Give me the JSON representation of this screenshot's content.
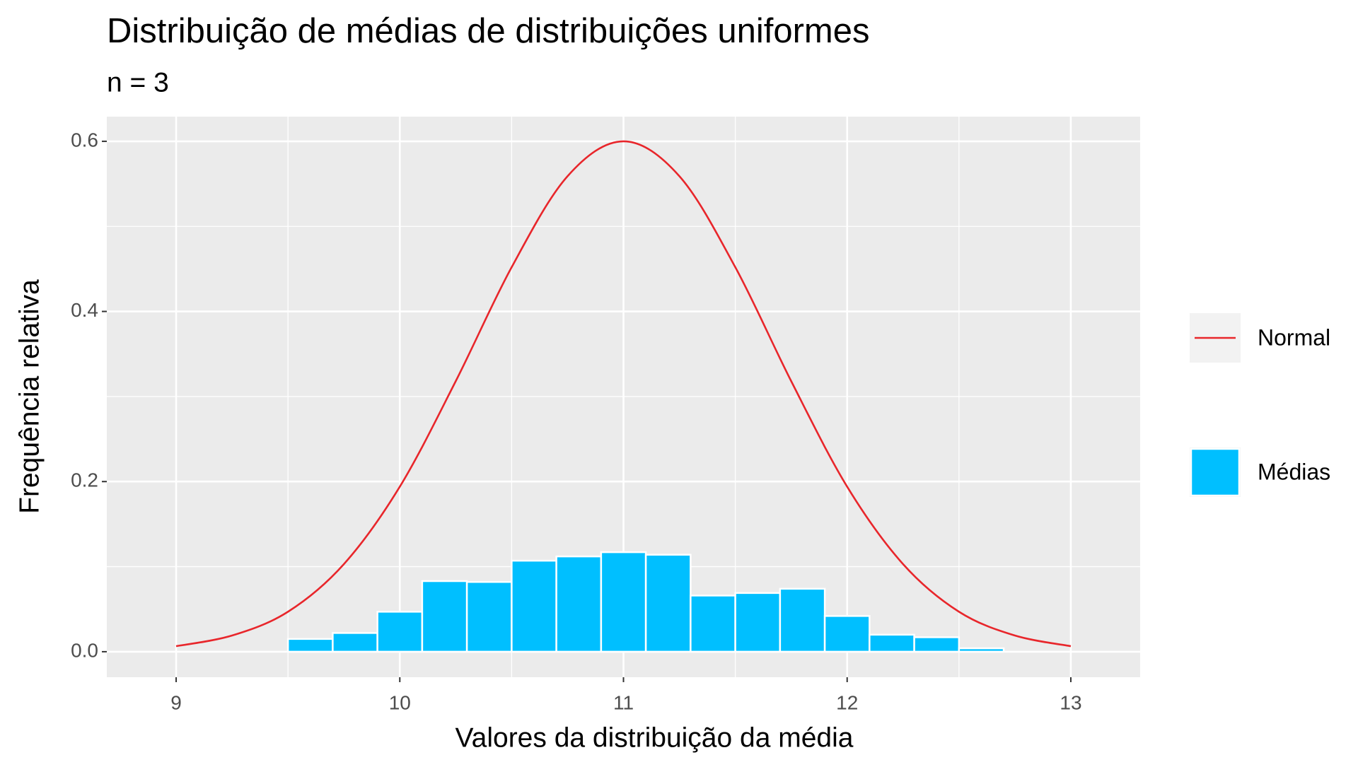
{
  "chart_data": {
    "type": "histogram",
    "title": "Distribuição de médias de distribuições uniformes",
    "subtitle": "n = 3",
    "xlabel": "Valores da distribuição da média",
    "ylabel": "Frequência relativa",
    "xlim": [
      8.69,
      13.31
    ],
    "ylim": [
      -0.03,
      0.629
    ],
    "xticks": [
      9,
      10,
      11,
      12,
      13
    ],
    "yticks": [
      {
        "value": 0,
        "label": "0.0"
      },
      0.2,
      0.4,
      0.6
    ],
    "grid": true,
    "legend": "right",
    "series": [
      {
        "name": "Normal",
        "type": "line",
        "color": "#e8262b",
        "x": [
          9,
          9.25,
          9.5,
          9.75,
          10,
          10.25,
          10.5,
          10.75,
          11,
          11.25,
          11.5,
          11.75,
          12,
          12.25,
          12.5,
          12.75,
          13
        ],
        "values": [
          0.0065,
          0.019,
          0.047,
          0.103,
          0.194,
          0.318,
          0.452,
          0.559,
          0.6,
          0.559,
          0.452,
          0.318,
          0.194,
          0.103,
          0.047,
          0.019,
          0.0065
        ]
      },
      {
        "name": "Médias",
        "type": "histogram",
        "color": "#00bfff",
        "bins": [
          9.5,
          9.7,
          9.9,
          10.1,
          10.3,
          10.5,
          10.7,
          10.9,
          11.1,
          11.3,
          11.5,
          11.7,
          11.9,
          12.1,
          12.3,
          12.5,
          12.7
        ],
        "values": [
          0.015,
          0.022,
          0.047,
          0.083,
          0.082,
          0.107,
          0.112,
          0.117,
          0.114,
          0.066,
          0.069,
          0.074,
          0.042,
          0.02,
          0.017,
          0.004
        ]
      }
    ]
  }
}
